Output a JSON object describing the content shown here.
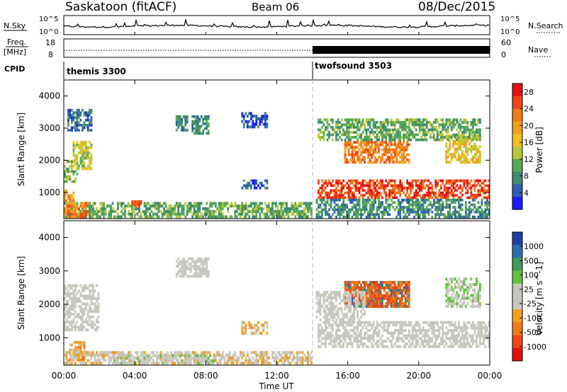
{
  "header": {
    "station": "Saskatoon (fitACF)",
    "beam": "Beam 06",
    "date": "08/Dec/2015"
  },
  "noise_panel": {
    "left_label": "N.Sky",
    "right_label": "N.Search",
    "tick_top": "10^5",
    "tick_bottom": "10^0"
  },
  "freq_panel": {
    "left_label_top": "Freq.",
    "left_label_bottom": "[MHz]",
    "right_label": "Nave",
    "left_ticks": [
      "18",
      "8"
    ],
    "right_ticks": [
      "60",
      "0"
    ]
  },
  "cpid_panel": {
    "label": "CPID",
    "modes": [
      {
        "name": "themis 3300",
        "start_hour": 0
      },
      {
        "name": "twofsound 3503",
        "start_hour": 14.0
      }
    ]
  },
  "axes": {
    "x_ticks": [
      "00:00",
      "04:00",
      "08:00",
      "12:00",
      "16:00",
      "20:00",
      "00:00"
    ],
    "x_label": "Time UT",
    "y_label": "Slant Range [km]",
    "y_ticks": [
      "1000",
      "2000",
      "3000",
      "4000"
    ]
  },
  "power_colorbar": {
    "label": "Power [dB]",
    "ticks": [
      "4",
      "8",
      "12",
      "16",
      "20",
      "24",
      "28"
    ],
    "colors": [
      "#1a1aff",
      "#2e5fb3",
      "#3f8c6f",
      "#5aaa55",
      "#b8c83c",
      "#f0c020",
      "#f4a020",
      "#f07a1a",
      "#ef4518",
      "#e81010"
    ]
  },
  "velocity_colorbar": {
    "label": "Velocity [m s^-1]",
    "ticks": [
      "1000",
      "500",
      "100",
      "25",
      "-25",
      "-100",
      "-500",
      "-1000"
    ],
    "colors": [
      "#1c3fa8",
      "#2d6fb5",
      "#3f9c5a",
      "#66c040",
      "#c8c8c0",
      "#c8c8c0",
      "#f0a020",
      "#f07a18",
      "#ef4518",
      "#e60e0e"
    ]
  },
  "chart_data": [
    {
      "type": "heatmap",
      "title": "Power [dB]",
      "xlabel": "Time UT",
      "ylabel": "Slant Range [km]",
      "xlim": [
        0,
        24
      ],
      "ylim": [
        180,
        4500
      ],
      "zlim": [
        0,
        30
      ],
      "grid": false,
      "regions": [
        {
          "t0": 0.0,
          "t1": 0.6,
          "r0": 300,
          "r1": 1100,
          "power": 20
        },
        {
          "t0": 0.0,
          "t1": 0.8,
          "r0": 1300,
          "r1": 2000,
          "power": 12
        },
        {
          "t0": 0.5,
          "t1": 1.6,
          "r0": 1700,
          "r1": 2600,
          "power": 14
        },
        {
          "t0": 0.2,
          "t1": 1.6,
          "r0": 2900,
          "r1": 3600,
          "power": 6
        },
        {
          "t0": 0.0,
          "t1": 14.0,
          "r0": 200,
          "r1": 700,
          "power": 10
        },
        {
          "t0": 0.2,
          "t1": 1.4,
          "r0": 200,
          "r1": 700,
          "power": 22
        },
        {
          "t0": 3.8,
          "t1": 4.4,
          "r0": 550,
          "r1": 750,
          "power": 24
        },
        {
          "t0": 6.3,
          "t1": 7.0,
          "r0": 2900,
          "r1": 3400,
          "power": 8
        },
        {
          "t0": 7.2,
          "t1": 8.2,
          "r0": 2800,
          "r1": 3400,
          "power": 8
        },
        {
          "t0": 10.0,
          "t1": 11.5,
          "r0": 1100,
          "r1": 1400,
          "power": 6
        },
        {
          "t0": 10.0,
          "t1": 11.5,
          "r0": 3000,
          "r1": 3500,
          "power": 4
        },
        {
          "t0": 14.3,
          "t1": 24.0,
          "r0": 800,
          "r1": 1400,
          "power": 26
        },
        {
          "t0": 15.8,
          "t1": 19.5,
          "r0": 1900,
          "r1": 2600,
          "power": 22
        },
        {
          "t0": 21.5,
          "t1": 23.5,
          "r0": 1900,
          "r1": 2800,
          "power": 16
        },
        {
          "t0": 14.2,
          "t1": 24.0,
          "r0": 200,
          "r1": 800,
          "power": 8
        },
        {
          "t0": 14.3,
          "t1": 23.5,
          "r0": 2600,
          "r1": 3300,
          "power": 10
        }
      ]
    },
    {
      "type": "heatmap",
      "title": "Velocity [m s^-1]",
      "xlabel": "Time UT",
      "ylabel": "Slant Range [km]",
      "xlim": [
        0,
        24
      ],
      "ylim": [
        180,
        4500
      ],
      "zlim": [
        -1000,
        1000
      ],
      "grid": false,
      "regions": [
        {
          "t0": 0.0,
          "t1": 2.0,
          "r0": 1200,
          "r1": 2600,
          "velocity": 0
        },
        {
          "t0": 0.3,
          "t1": 1.2,
          "r0": 300,
          "r1": 900,
          "velocity": -300
        },
        {
          "t0": 0.0,
          "t1": 14.0,
          "r0": 200,
          "r1": 600,
          "velocity": -120
        },
        {
          "t0": 2.5,
          "t1": 8.5,
          "r0": 200,
          "r1": 500,
          "velocity": 80
        },
        {
          "t0": 6.3,
          "t1": 8.2,
          "r0": 2800,
          "r1": 3400,
          "velocity": 0
        },
        {
          "t0": 10.0,
          "t1": 11.5,
          "r0": 1100,
          "r1": 1500,
          "velocity": -200
        },
        {
          "t0": 14.3,
          "t1": 24.0,
          "r0": 700,
          "r1": 1500,
          "velocity": 0
        },
        {
          "t0": 15.8,
          "t1": 19.5,
          "r0": 1900,
          "r1": 2700,
          "velocity": 600
        },
        {
          "t0": 15.8,
          "t1": 19.5,
          "r0": 1900,
          "r1": 2700,
          "velocity": -600
        },
        {
          "t0": 21.5,
          "t1": 23.5,
          "r0": 1900,
          "r1": 2800,
          "velocity": 150
        },
        {
          "t0": 14.2,
          "t1": 17.0,
          "r0": 1500,
          "r1": 2400,
          "velocity": 0
        }
      ]
    }
  ]
}
